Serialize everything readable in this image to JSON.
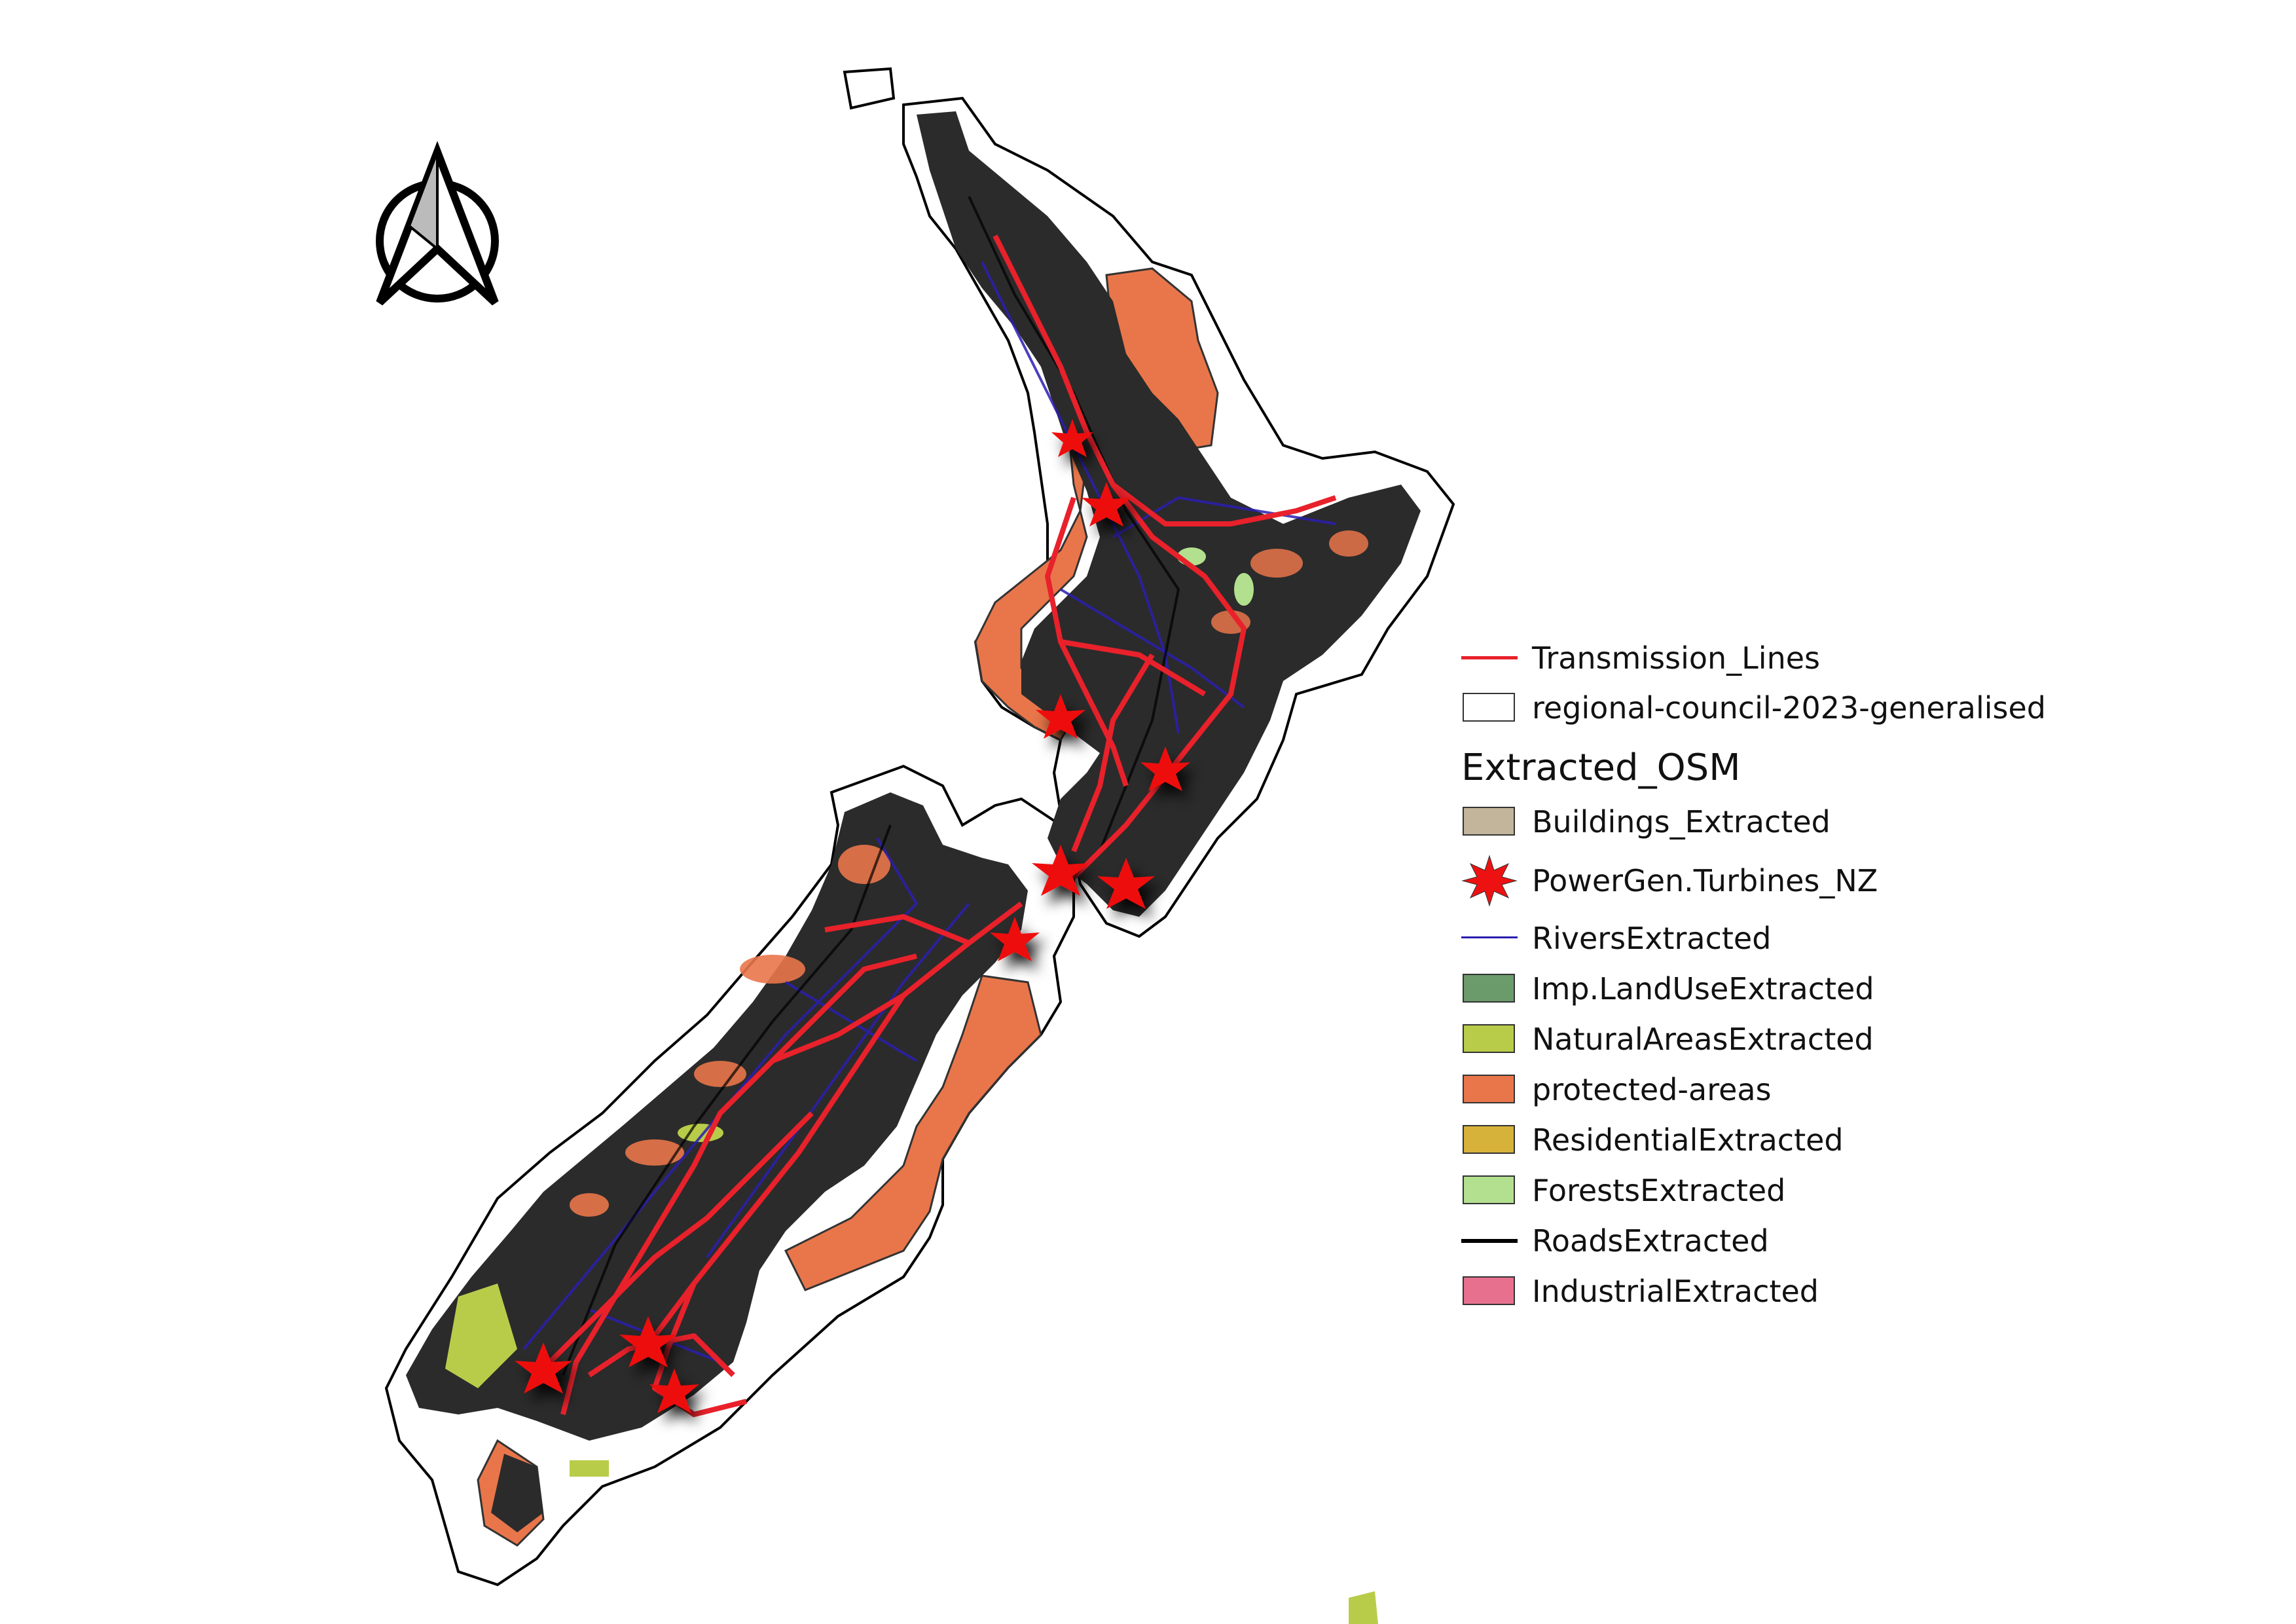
{
  "map": {
    "north_arrow": "north-arrow-icon",
    "colors": {
      "land": "#2b2b2b",
      "transmission": "#e8212b",
      "rivers": "#2a1fb0",
      "protected": "#e9764a",
      "natural": "#b9cc4a",
      "turbine": "#ee1111"
    }
  },
  "legend": {
    "items": [
      {
        "label": "Transmission_Lines",
        "symbol": "line",
        "color": "#e8212b"
      },
      {
        "label": "regional-council-2023-generalised",
        "symbol": "patch",
        "color": "#ffffff"
      }
    ],
    "group_title": "Extracted_OSM",
    "group_items": [
      {
        "label": "Buildings_Extracted",
        "symbol": "patch",
        "color": "#c2b59b"
      },
      {
        "label": "PowerGen.Turbines_NZ",
        "symbol": "star",
        "color": "#ee1111"
      },
      {
        "label": "RiversExtracted",
        "symbol": "line",
        "color": "#2a1fb0"
      },
      {
        "label": "Imp.LandUseExtracted",
        "symbol": "patch",
        "color": "#6b9a6b"
      },
      {
        "label": "NaturalAreasExtracted",
        "symbol": "patch",
        "color": "#b9cc4a"
      },
      {
        "label": "protected-areas",
        "symbol": "patch",
        "color": "#e9764a"
      },
      {
        "label": "ResidentialExtracted",
        "symbol": "patch",
        "color": "#d6b23a"
      },
      {
        "label": "ForestsExtracted",
        "symbol": "patch",
        "color": "#b3e08f"
      },
      {
        "label": "RoadsExtracted",
        "symbol": "line",
        "color": "#000000"
      },
      {
        "label": "IndustrialExtracted",
        "symbol": "patch",
        "color": "#e8708f"
      }
    ]
  }
}
